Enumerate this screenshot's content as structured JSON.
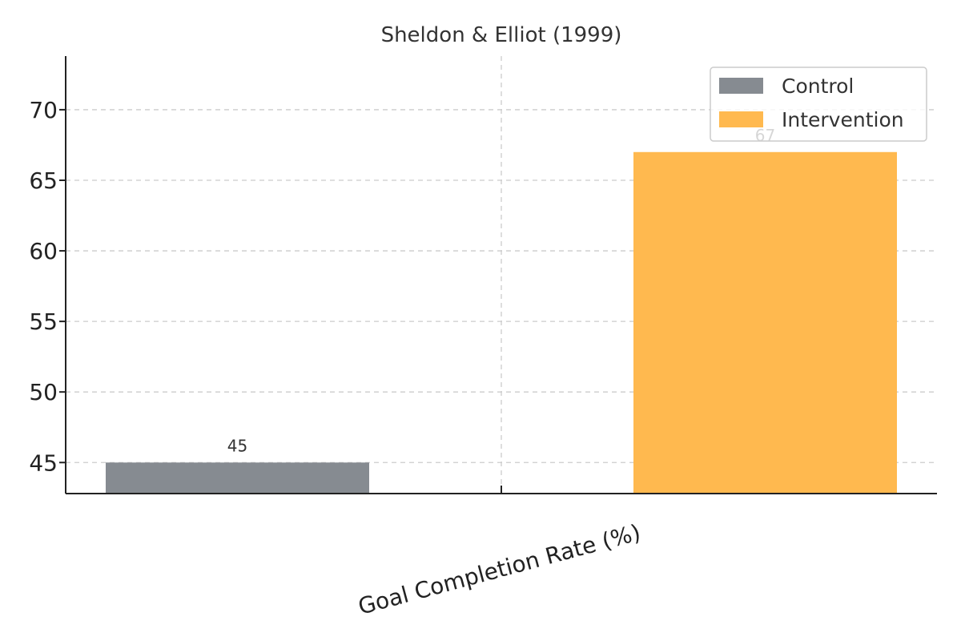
{
  "chart_data": {
    "type": "bar",
    "title": "Sheldon & Elliot (1999)",
    "categories": [
      "Goal Completion Rate (%)"
    ],
    "series": [
      {
        "name": "Control",
        "values": [
          45
        ],
        "color": "#868b91"
      },
      {
        "name": "Intervention",
        "values": [
          67
        ],
        "color": "#ffb94f"
      }
    ],
    "ylim": [
      42.8,
      73.8
    ],
    "yticks": [
      45,
      50,
      55,
      60,
      65,
      70
    ],
    "grid": true,
    "legend": "top-right",
    "data_labels": true
  }
}
